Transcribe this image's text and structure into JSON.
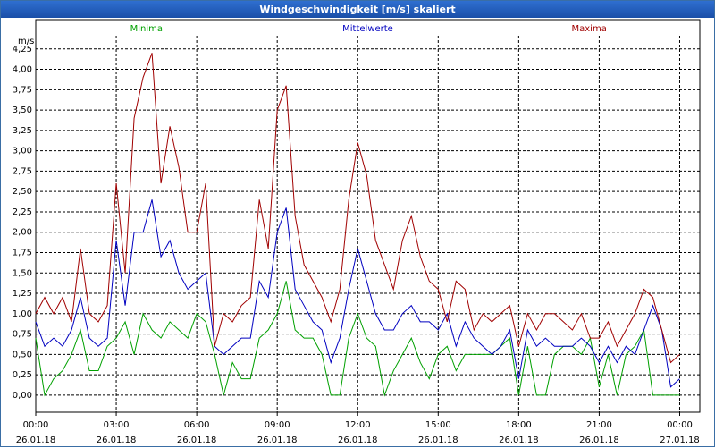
{
  "chart_data": {
    "type": "line",
    "title": "Windgeschwindigkeit [m/s] skaliert",
    "y_unit": "m/s",
    "x": [
      0,
      20,
      40,
      60,
      80,
      100,
      120,
      140,
      160,
      180,
      200,
      220,
      240,
      260,
      280,
      300,
      320,
      340,
      360,
      380,
      400,
      420,
      440,
      460,
      480,
      500,
      520,
      540,
      560,
      580,
      600,
      620,
      640,
      660,
      680,
      700,
      720,
      740,
      760,
      780,
      800,
      820,
      840,
      860,
      880,
      900,
      920,
      940,
      960,
      980,
      1000,
      1020,
      1040,
      1060,
      1080,
      1100,
      1120,
      1140,
      1160,
      1180,
      1200,
      1220,
      1240,
      1260,
      1280,
      1300,
      1320,
      1340,
      1360,
      1380,
      1400,
      1420,
      1440
    ],
    "series": [
      {
        "name": "Minima",
        "color": "#00a000",
        "values": [
          0.7,
          0.0,
          0.2,
          0.3,
          0.5,
          0.8,
          0.3,
          0.3,
          0.6,
          0.7,
          0.9,
          0.5,
          1.0,
          0.8,
          0.7,
          0.9,
          0.8,
          0.7,
          1.0,
          0.9,
          0.5,
          0.0,
          0.4,
          0.2,
          0.2,
          0.7,
          0.8,
          1.0,
          1.4,
          0.8,
          0.7,
          0.7,
          0.5,
          0.0,
          0.0,
          0.7,
          1.0,
          0.7,
          0.6,
          0.0,
          0.3,
          0.5,
          0.7,
          0.4,
          0.2,
          0.5,
          0.6,
          0.3,
          0.5,
          0.5,
          0.5,
          0.5,
          0.6,
          0.7,
          0.0,
          0.6,
          0.0,
          0.0,
          0.5,
          0.6,
          0.6,
          0.5,
          0.7,
          0.1,
          0.5,
          0.0,
          0.5,
          0.6,
          0.8,
          0.0,
          0.0,
          0.0,
          0.0
        ]
      },
      {
        "name": "Mittelwerte",
        "color": "#0000c0",
        "values": [
          0.9,
          0.6,
          0.7,
          0.6,
          0.8,
          1.2,
          0.7,
          0.6,
          0.7,
          1.9,
          1.1,
          2.0,
          2.0,
          2.4,
          1.7,
          1.9,
          1.5,
          1.3,
          1.4,
          1.5,
          0.6,
          0.5,
          0.6,
          0.7,
          0.7,
          1.4,
          1.2,
          2.0,
          2.3,
          1.3,
          1.1,
          0.9,
          0.8,
          0.4,
          0.7,
          1.3,
          1.8,
          1.4,
          1.0,
          0.8,
          0.8,
          1.0,
          1.1,
          0.9,
          0.9,
          0.8,
          1.0,
          0.6,
          0.9,
          0.7,
          0.6,
          0.5,
          0.6,
          0.8,
          0.2,
          0.8,
          0.6,
          0.7,
          0.6,
          0.6,
          0.6,
          0.7,
          0.6,
          0.4,
          0.6,
          0.4,
          0.6,
          0.5,
          0.8,
          1.1,
          0.8,
          0.1,
          0.2
        ]
      },
      {
        "name": "Maxima",
        "color": "#a00000",
        "values": [
          1.0,
          1.2,
          1.0,
          1.2,
          0.9,
          1.8,
          1.0,
          0.9,
          1.1,
          2.6,
          1.5,
          3.4,
          3.9,
          4.2,
          2.6,
          3.3,
          2.8,
          2.0,
          2.0,
          2.6,
          0.6,
          1.0,
          0.9,
          1.1,
          1.2,
          2.4,
          1.8,
          3.5,
          3.8,
          2.2,
          1.6,
          1.4,
          1.2,
          0.9,
          1.3,
          2.4,
          3.1,
          2.7,
          1.9,
          1.6,
          1.3,
          1.9,
          2.2,
          1.7,
          1.4,
          1.3,
          0.9,
          1.4,
          1.3,
          0.8,
          1.0,
          0.9,
          1.0,
          1.1,
          0.6,
          1.0,
          0.8,
          1.0,
          1.0,
          0.9,
          0.8,
          1.0,
          0.7,
          0.7,
          0.9,
          0.6,
          0.8,
          1.0,
          1.3,
          1.2,
          0.8,
          0.4,
          0.5
        ]
      }
    ],
    "xlim": [
      0,
      1485
    ],
    "ylim": [
      -0.21,
      4.61
    ],
    "xticks": [
      {
        "value": 0,
        "label": "00:00\n26.01.18"
      },
      {
        "value": 180,
        "label": "03:00\n26.01.18"
      },
      {
        "value": 360,
        "label": "06:00\n26.01.18"
      },
      {
        "value": 540,
        "label": "09:00\n26.01.18"
      },
      {
        "value": 720,
        "label": "12:00\n26.01.18"
      },
      {
        "value": 900,
        "label": "15:00\n26.01.18"
      },
      {
        "value": 1080,
        "label": "18:00\n26.01.18"
      },
      {
        "value": 1260,
        "label": "21:00\n26.01.18"
      },
      {
        "value": 1440,
        "label": "00:00\n27.01.18"
      }
    ],
    "yticks": [
      {
        "value": 0,
        "label": "0,00"
      },
      {
        "value": 0.25,
        "label": "0,25"
      },
      {
        "value": 0.5,
        "label": "0,50"
      },
      {
        "value": 0.75,
        "label": "0,75"
      },
      {
        "value": 1,
        "label": "1,00"
      },
      {
        "value": 1.25,
        "label": "1,25"
      },
      {
        "value": 1.5,
        "label": "1,50"
      },
      {
        "value": 1.75,
        "label": "1,75"
      },
      {
        "value": 2,
        "label": "2,00"
      },
      {
        "value": 2.25,
        "label": "2,25"
      },
      {
        "value": 2.5,
        "label": "2,50"
      },
      {
        "value": 2.75,
        "label": "2,75"
      },
      {
        "value": 3,
        "label": "3,00"
      },
      {
        "value": 3.25,
        "label": "3,25"
      },
      {
        "value": 3.5,
        "label": "3,50"
      },
      {
        "value": 3.75,
        "label": "3,75"
      },
      {
        "value": 4,
        "label": "4,00"
      },
      {
        "value": 4.25,
        "label": "4,25"
      }
    ],
    "grid": true,
    "legend": "top"
  }
}
